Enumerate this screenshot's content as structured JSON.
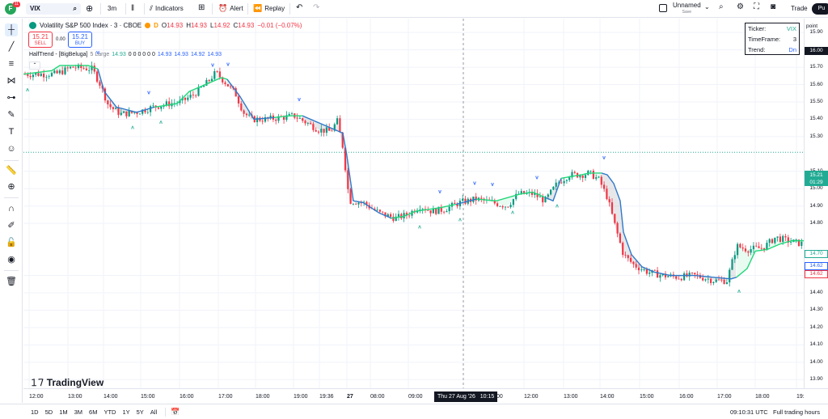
{
  "topbar": {
    "avatar_letter": "F",
    "avatar_badge": "11",
    "symbol": "VIX",
    "interval": "3m",
    "indicators": "Indicators",
    "alert": "Alert",
    "replay": "Replay",
    "layout_name": "Unnamed",
    "layout_status": "Save",
    "trade": "Trade",
    "publish": "Pu"
  },
  "legend": {
    "title": "Volatility S&P 500 Index · 3 · CBOE",
    "flag": "D",
    "ohlc": [
      {
        "k": "O",
        "v": "14.93"
      },
      {
        "k": "H",
        "v": "14.93"
      },
      {
        "k": "L",
        "v": "14.92"
      },
      {
        "k": "C",
        "v": "14.93"
      }
    ],
    "change": "−0.01 (−0.07%)",
    "sell_price": "15.21",
    "sell_label": "SELL",
    "spread": "0.00",
    "buy_price": "15.21",
    "buy_label": "BUY"
  },
  "indicator": {
    "name": "HalfTrend - [BigBeluga]",
    "params": "5 Large",
    "v1": "14.93",
    "zeros": "0 0 0 0 0 0",
    "v2": "14.93",
    "v3": "14.93",
    "v4": "14.92",
    "v5": "14.93"
  },
  "info_table": {
    "ticker_label": "Ticker:",
    "ticker_value": "VIX",
    "tf_label": "TimeFrame:",
    "tf_value": "3",
    "trend_label": "Trend:",
    "trend_value": "Dn"
  },
  "price_axis": {
    "unit": "point",
    "crosshair_price": "16.00",
    "ticks": [
      "15.90",
      "15.80",
      "15.70",
      "15.60",
      "15.50",
      "15.40",
      "15.30",
      "15.10",
      "15.00",
      "14.90",
      "14.80",
      "14.50",
      "14.40",
      "14.30",
      "14.20",
      "14.10",
      "14.00",
      "13.90"
    ],
    "last_price": "15.21",
    "countdown": "01:29",
    "ht_value": "14.70",
    "blue_value": "14.62",
    "red_value": "14.62"
  },
  "time_axis": {
    "ticks": [
      "12:00",
      "13:00",
      "14:00",
      "15:00",
      "16:00",
      "17:00",
      "18:00",
      "19:00",
      "19:36",
      "27",
      "08:00",
      "09:00",
      "12:00",
      "13:00",
      "14:00",
      "15:00",
      "16:00",
      "17:00",
      "18:00",
      "19:"
    ],
    "crosshair_time": "Thu 27 Aug '26",
    "crosshair_clock": "10:15",
    "cut_tick": ":00"
  },
  "bottom": {
    "ranges": [
      "1D",
      "5D",
      "1M",
      "3M",
      "6M",
      "YTD",
      "1Y",
      "5Y",
      "All"
    ],
    "clock": "09:10:31 UTC",
    "session": "Full trading hours"
  },
  "brand": "TradingView",
  "colors": {
    "up": "#089981",
    "down": "#f23645",
    "ht_up": "#22d67a",
    "ht_down": "#2f79c9",
    "accent": "#2962ff"
  },
  "chart_data": {
    "type": "candlestick",
    "series": [
      {
        "name": "HalfTrend - [BigBeluga]"
      }
    ],
    "ylim": [
      13.85,
      15.98
    ],
    "halftrend": [
      [
        0,
        15.66
      ],
      [
        35,
        15.68
      ],
      [
        45,
        15.71
      ],
      [
        80,
        15.71
      ],
      [
        92,
        15.69
      ],
      [
        100,
        15.56
      ],
      [
        115,
        15.47
      ],
      [
        140,
        15.44
      ],
      [
        162,
        15.47
      ],
      [
        190,
        15.49
      ],
      [
        205,
        15.56
      ],
      [
        225,
        15.6
      ],
      [
        245,
        15.64
      ],
      [
        252,
        15.63
      ],
      [
        268,
        15.53
      ],
      [
        285,
        15.4
      ],
      [
        310,
        15.41
      ],
      [
        330,
        15.42
      ],
      [
        345,
        15.42
      ],
      [
        355,
        15.4
      ],
      [
        380,
        15.35
      ],
      [
        395,
        15.32
      ],
      [
        400,
        15.19
      ],
      [
        408,
        14.93
      ],
      [
        420,
        14.92
      ],
      [
        440,
        14.86
      ],
      [
        455,
        14.83
      ],
      [
        470,
        14.84
      ],
      [
        485,
        14.87
      ],
      [
        500,
        14.88
      ],
      [
        515,
        14.89
      ],
      [
        535,
        14.91
      ],
      [
        560,
        14.94
      ],
      [
        585,
        14.93
      ],
      [
        600,
        14.95
      ],
      [
        615,
        14.97
      ],
      [
        630,
        14.98
      ],
      [
        645,
        14.95
      ],
      [
        655,
        14.93
      ],
      [
        665,
        15.06
      ],
      [
        690,
        15.08
      ],
      [
        700,
        15.09
      ],
      [
        715,
        15.09
      ],
      [
        722,
        15.08
      ],
      [
        730,
        15.03
      ],
      [
        738,
        14.93
      ],
      [
        742,
        14.75
      ],
      [
        752,
        14.62
      ],
      [
        765,
        14.55
      ],
      [
        780,
        14.52
      ],
      [
        800,
        14.5
      ],
      [
        830,
        14.5
      ],
      [
        875,
        14.48
      ],
      [
        882,
        14.49
      ],
      [
        895,
        14.54
      ],
      [
        905,
        14.64
      ],
      [
        920,
        14.65
      ],
      [
        935,
        14.68
      ],
      [
        950,
        14.7
      ],
      [
        965,
        14.7
      ]
    ],
    "ht_segments": [
      {
        "from": 0,
        "to": 92,
        "dir": "up"
      },
      {
        "from": 92,
        "to": 162,
        "dir": "down"
      },
      {
        "from": 162,
        "to": 252,
        "dir": "up"
      },
      {
        "from": 252,
        "to": 310,
        "dir": "down"
      },
      {
        "from": 310,
        "to": 345,
        "dir": "up"
      },
      {
        "from": 345,
        "to": 455,
        "dir": "down"
      },
      {
        "from": 455,
        "to": 535,
        "dir": "up"
      },
      {
        "from": 535,
        "to": 560,
        "dir": "down"
      },
      {
        "from": 560,
        "to": 645,
        "dir": "up"
      },
      {
        "from": 645,
        "to": 665,
        "dir": "down"
      },
      {
        "from": 665,
        "to": 715,
        "dir": "up"
      },
      {
        "from": 715,
        "to": 882,
        "dir": "down"
      },
      {
        "from": 882,
        "to": 965,
        "dir": "up"
      }
    ],
    "candles_path": [
      [
        0,
        15.66
      ],
      [
        20,
        15.66
      ],
      [
        40,
        15.66
      ],
      [
        60,
        15.7
      ],
      [
        85,
        15.69
      ],
      [
        95,
        15.6
      ],
      [
        105,
        15.48
      ],
      [
        120,
        15.43
      ],
      [
        140,
        15.44
      ],
      [
        160,
        15.47
      ],
      [
        180,
        15.49
      ],
      [
        195,
        15.5
      ],
      [
        210,
        15.54
      ],
      [
        225,
        15.6
      ],
      [
        238,
        15.67
      ],
      [
        250,
        15.61
      ],
      [
        262,
        15.55
      ],
      [
        272,
        15.44
      ],
      [
        282,
        15.4
      ],
      [
        300,
        15.4
      ],
      [
        320,
        15.41
      ],
      [
        335,
        15.42
      ],
      [
        350,
        15.38
      ],
      [
        365,
        15.34
      ],
      [
        380,
        15.33
      ],
      [
        388,
        15.39
      ],
      [
        395,
        15.24
      ],
      [
        403,
        14.93
      ],
      [
        420,
        14.92
      ],
      [
        440,
        14.86
      ],
      [
        460,
        14.83
      ],
      [
        475,
        14.85
      ],
      [
        490,
        14.9
      ],
      [
        505,
        14.87
      ],
      [
        520,
        14.88
      ],
      [
        540,
        14.92
      ],
      [
        560,
        14.94
      ],
      [
        580,
        14.92
      ],
      [
        598,
        14.9
      ],
      [
        612,
        14.97
      ],
      [
        630,
        14.97
      ],
      [
        645,
        14.93
      ],
      [
        660,
        15.03
      ],
      [
        675,
        15.08
      ],
      [
        690,
        15.08
      ],
      [
        700,
        15.09
      ],
      [
        712,
        15.05
      ],
      [
        722,
        14.95
      ],
      [
        732,
        14.78
      ],
      [
        742,
        14.62
      ],
      [
        755,
        14.56
      ],
      [
        772,
        14.52
      ],
      [
        790,
        14.5
      ],
      [
        810,
        14.49
      ],
      [
        830,
        14.5
      ],
      [
        855,
        14.47
      ],
      [
        870,
        14.47
      ],
      [
        882,
        14.67
      ],
      [
        895,
        14.65
      ],
      [
        915,
        14.66
      ],
      [
        930,
        14.72
      ],
      [
        945,
        14.7
      ],
      [
        965,
        14.68
      ]
    ],
    "signals": [
      {
        "x": 5,
        "type": "up"
      },
      {
        "x": 92,
        "type": "down"
      },
      {
        "x": 135,
        "type": "up"
      },
      {
        "x": 155,
        "type": "down"
      },
      {
        "x": 170,
        "type": "up"
      },
      {
        "x": 234,
        "type": "down"
      },
      {
        "x": 253,
        "type": "down"
      },
      {
        "x": 341,
        "type": "down"
      },
      {
        "x": 490,
        "type": "up"
      },
      {
        "x": 515,
        "type": "down"
      },
      {
        "x": 540,
        "type": "up"
      },
      {
        "x": 558,
        "type": "down"
      },
      {
        "x": 580,
        "type": "down"
      },
      {
        "x": 605,
        "type": "up"
      },
      {
        "x": 635,
        "type": "down"
      },
      {
        "x": 660,
        "type": "up"
      },
      {
        "x": 718,
        "type": "down"
      },
      {
        "x": 885,
        "type": "up"
      }
    ]
  }
}
